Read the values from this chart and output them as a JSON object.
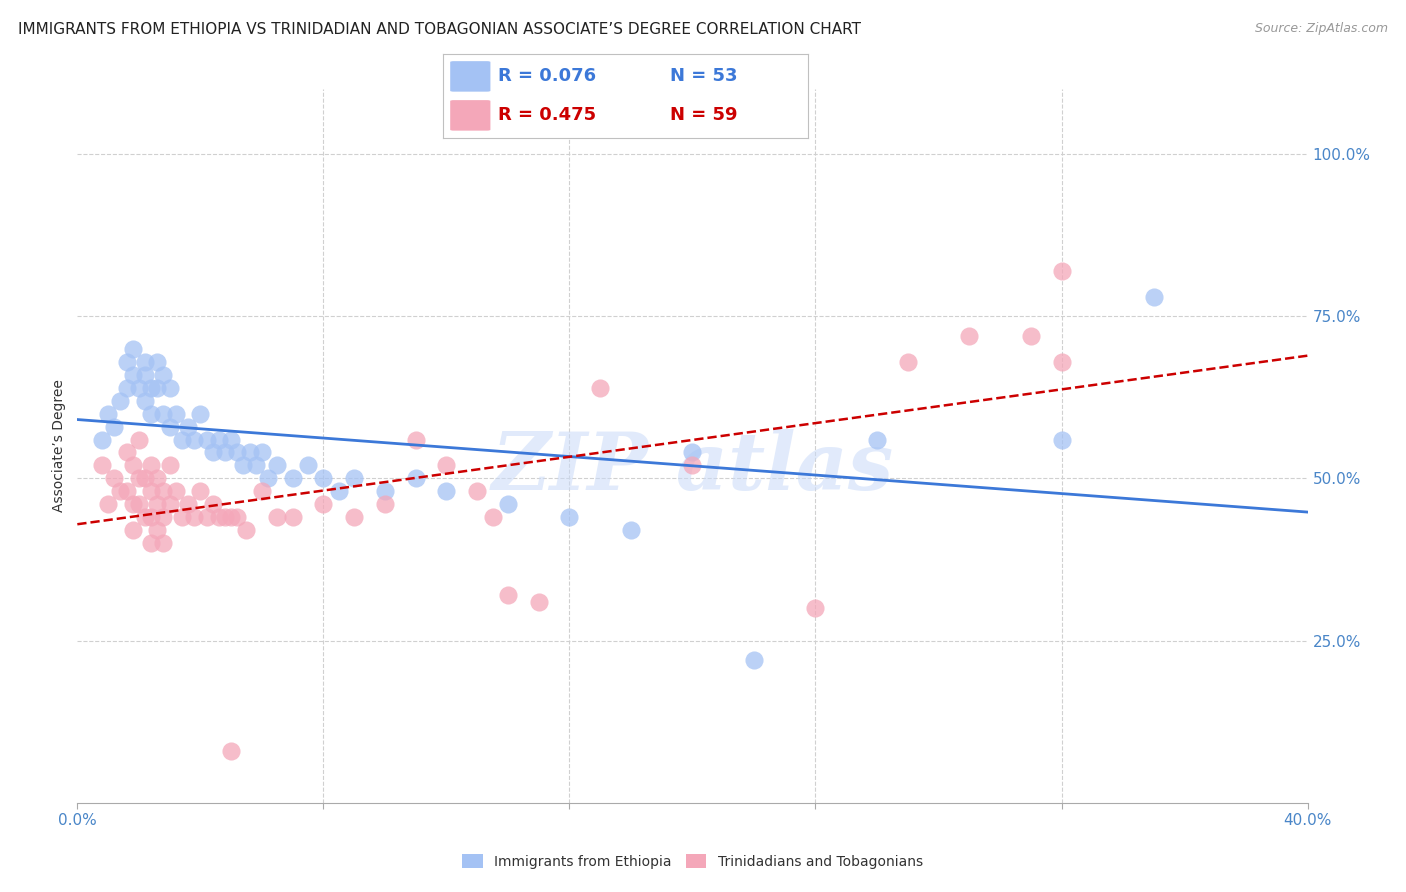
{
  "title": "IMMIGRANTS FROM ETHIOPIA VS TRINIDADIAN AND TOBAGONIAN ASSOCIATE’S DEGREE CORRELATION CHART",
  "source": "Source: ZipAtlas.com",
  "ylabel": "Associate’s Degree",
  "yticks": [
    "100.0%",
    "75.0%",
    "50.0%",
    "25.0%"
  ],
  "ytick_vals": [
    1.0,
    0.75,
    0.5,
    0.25
  ],
  "xlim": [
    0.0,
    0.4
  ],
  "ylim": [
    0.0,
    1.1
  ],
  "xticks": [
    0.0,
    0.08,
    0.16,
    0.24,
    0.32,
    0.4
  ],
  "xtick_labels": [
    "0.0%",
    "",
    "",
    "",
    "",
    "40.0%"
  ],
  "legend_r1": "R = 0.076",
  "legend_n1": "N = 53",
  "legend_r2": "R = 0.475",
  "legend_n2": "N = 59",
  "blue_color": "#a4c2f4",
  "pink_color": "#f4a7b9",
  "blue_line_color": "#3c78d8",
  "pink_line_color": "#cc0000",
  "axis_color": "#4a86c8",
  "watermark_color": "#c9daf8",
  "background_color": "#ffffff",
  "scatter_blue": [
    [
      0.008,
      0.56
    ],
    [
      0.01,
      0.6
    ],
    [
      0.012,
      0.58
    ],
    [
      0.014,
      0.62
    ],
    [
      0.016,
      0.64
    ],
    [
      0.016,
      0.68
    ],
    [
      0.018,
      0.66
    ],
    [
      0.018,
      0.7
    ],
    [
      0.02,
      0.64
    ],
    [
      0.022,
      0.66
    ],
    [
      0.022,
      0.68
    ],
    [
      0.022,
      0.62
    ],
    [
      0.024,
      0.64
    ],
    [
      0.024,
      0.6
    ],
    [
      0.026,
      0.68
    ],
    [
      0.026,
      0.64
    ],
    [
      0.028,
      0.66
    ],
    [
      0.028,
      0.6
    ],
    [
      0.03,
      0.64
    ],
    [
      0.03,
      0.58
    ],
    [
      0.032,
      0.6
    ],
    [
      0.034,
      0.56
    ],
    [
      0.036,
      0.58
    ],
    [
      0.038,
      0.56
    ],
    [
      0.04,
      0.6
    ],
    [
      0.042,
      0.56
    ],
    [
      0.044,
      0.54
    ],
    [
      0.046,
      0.56
    ],
    [
      0.048,
      0.54
    ],
    [
      0.05,
      0.56
    ],
    [
      0.052,
      0.54
    ],
    [
      0.054,
      0.52
    ],
    [
      0.056,
      0.54
    ],
    [
      0.058,
      0.52
    ],
    [
      0.06,
      0.54
    ],
    [
      0.062,
      0.5
    ],
    [
      0.065,
      0.52
    ],
    [
      0.07,
      0.5
    ],
    [
      0.075,
      0.52
    ],
    [
      0.08,
      0.5
    ],
    [
      0.085,
      0.48
    ],
    [
      0.09,
      0.5
    ],
    [
      0.1,
      0.48
    ],
    [
      0.11,
      0.5
    ],
    [
      0.12,
      0.48
    ],
    [
      0.14,
      0.46
    ],
    [
      0.16,
      0.44
    ],
    [
      0.18,
      0.42
    ],
    [
      0.2,
      0.54
    ],
    [
      0.22,
      0.22
    ],
    [
      0.26,
      0.56
    ],
    [
      0.32,
      0.56
    ],
    [
      0.35,
      0.78
    ]
  ],
  "scatter_pink": [
    [
      0.008,
      0.52
    ],
    [
      0.01,
      0.46
    ],
    [
      0.012,
      0.5
    ],
    [
      0.014,
      0.48
    ],
    [
      0.016,
      0.54
    ],
    [
      0.016,
      0.48
    ],
    [
      0.018,
      0.52
    ],
    [
      0.018,
      0.46
    ],
    [
      0.018,
      0.42
    ],
    [
      0.02,
      0.56
    ],
    [
      0.02,
      0.5
    ],
    [
      0.02,
      0.46
    ],
    [
      0.022,
      0.5
    ],
    [
      0.022,
      0.44
    ],
    [
      0.024,
      0.52
    ],
    [
      0.024,
      0.48
    ],
    [
      0.024,
      0.44
    ],
    [
      0.024,
      0.4
    ],
    [
      0.026,
      0.5
    ],
    [
      0.026,
      0.46
    ],
    [
      0.026,
      0.42
    ],
    [
      0.028,
      0.48
    ],
    [
      0.028,
      0.44
    ],
    [
      0.028,
      0.4
    ],
    [
      0.03,
      0.52
    ],
    [
      0.03,
      0.46
    ],
    [
      0.032,
      0.48
    ],
    [
      0.034,
      0.44
    ],
    [
      0.036,
      0.46
    ],
    [
      0.038,
      0.44
    ],
    [
      0.04,
      0.48
    ],
    [
      0.042,
      0.44
    ],
    [
      0.044,
      0.46
    ],
    [
      0.046,
      0.44
    ],
    [
      0.048,
      0.44
    ],
    [
      0.05,
      0.44
    ],
    [
      0.052,
      0.44
    ],
    [
      0.055,
      0.42
    ],
    [
      0.06,
      0.48
    ],
    [
      0.065,
      0.44
    ],
    [
      0.07,
      0.44
    ],
    [
      0.08,
      0.46
    ],
    [
      0.09,
      0.44
    ],
    [
      0.1,
      0.46
    ],
    [
      0.11,
      0.56
    ],
    [
      0.12,
      0.52
    ],
    [
      0.13,
      0.48
    ],
    [
      0.135,
      0.44
    ],
    [
      0.14,
      0.32
    ],
    [
      0.15,
      0.31
    ],
    [
      0.17,
      0.64
    ],
    [
      0.2,
      0.52
    ],
    [
      0.24,
      0.3
    ],
    [
      0.27,
      0.68
    ],
    [
      0.29,
      0.72
    ],
    [
      0.31,
      0.72
    ],
    [
      0.32,
      0.82
    ],
    [
      0.05,
      0.08
    ],
    [
      0.32,
      0.68
    ]
  ],
  "title_fontsize": 11,
  "source_fontsize": 9,
  "axis_label_fontsize": 10,
  "tick_fontsize": 11,
  "legend_fontsize": 13
}
